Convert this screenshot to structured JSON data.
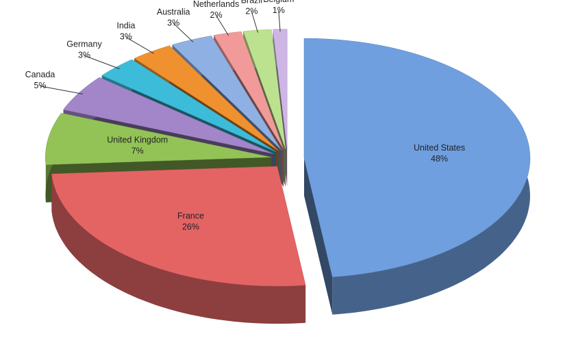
{
  "chart_data": {
    "type": "pie",
    "categories": [
      "United States",
      "France",
      "United Kingdom",
      "Canada",
      "Germany",
      "India",
      "Australia",
      "Netherlands",
      "Brazil",
      "Belgium"
    ],
    "values": [
      48,
      26,
      7,
      5,
      3,
      3,
      3,
      2,
      2,
      1
    ],
    "value_labels": [
      "48%",
      "26%",
      "7%",
      "5%",
      "3%",
      "3%",
      "3%",
      "2%",
      "2%",
      "1%"
    ],
    "colors": [
      "#6f9fdf",
      "#e46464",
      "#93c357",
      "#a286c9",
      "#3dbcd9",
      "#f0912f",
      "#8fb0e2",
      "#f29a9a",
      "#bde28f",
      "#cdb6e3"
    ]
  }
}
